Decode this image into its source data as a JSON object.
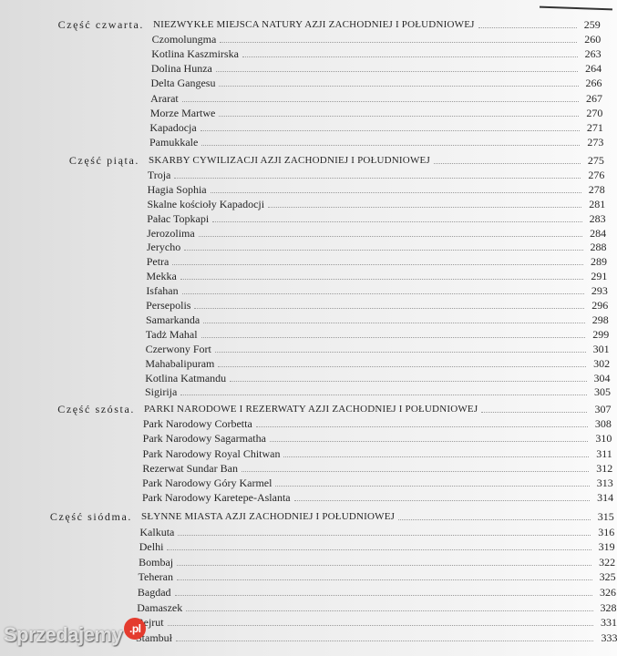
{
  "parts": [
    {
      "label": "Część czwarta.",
      "title": "NIEZWYKŁE MIEJSCA NATURY AZJI ZACHODNIEJ I POŁUDNIOWEJ",
      "page": "259",
      "entries": [
        [
          "Czomolungma",
          "260"
        ],
        [
          "Kotlina Kaszmirska",
          "263"
        ],
        [
          "Dolina Hunza",
          "264"
        ],
        [
          "Delta Gangesu",
          "266"
        ],
        [
          "Ararat",
          "267"
        ],
        [
          "Morze Martwe",
          "270"
        ],
        [
          "Kapadocja",
          "271"
        ],
        [
          "Pamukkale",
          "273"
        ]
      ]
    },
    {
      "label": "Część piąta.",
      "title": "SKARBY CYWILIZACJI AZJI ZACHODNIEJ I POŁUDNIOWEJ",
      "page": "275",
      "entries": [
        [
          "Troja",
          "276"
        ],
        [
          "Hagia Sophia",
          "278"
        ],
        [
          "Skalne kościoły Kapadocji",
          "281"
        ],
        [
          "Pałac Topkapi",
          "283"
        ],
        [
          "Jerozolima",
          "284"
        ],
        [
          "Jerycho",
          "288"
        ],
        [
          "Petra",
          "289"
        ],
        [
          "Mekka",
          "291"
        ],
        [
          "Isfahan",
          "293"
        ],
        [
          "Persepolis",
          "296"
        ],
        [
          "Samarkanda",
          "298"
        ],
        [
          "Tadż Mahal",
          "299"
        ],
        [
          "Czerwony Fort",
          "301"
        ],
        [
          "Mahabalipuram",
          "302"
        ],
        [
          "Kotlina Katmandu",
          "304"
        ],
        [
          "Sigirija",
          "305"
        ]
      ]
    },
    {
      "label": "Część szósta.",
      "title": "PARKI NARODOWE I REZERWATY AZJI ZACHODNIEJ I POŁUDNIOWEJ",
      "page": "307",
      "entries": [
        [
          "Park Narodowy Corbetta",
          "308"
        ],
        [
          "Park Narodowy Sagarmatha",
          "310"
        ],
        [
          "Park Narodowy Royal Chitwan",
          "311"
        ],
        [
          "Rezerwat Sundar Ban",
          "312"
        ],
        [
          "Park Narodowy Góry Karmel",
          "313"
        ],
        [
          "Park Narodowy Karetepe-Aslanta",
          "314"
        ]
      ]
    },
    {
      "label": "Część siódma.",
      "title": "SŁYNNE MIASTA AZJI ZACHODNIEJ I POŁUDNIOWEJ",
      "page": "315",
      "entries": [
        [
          "Kalkuta",
          "316"
        ],
        [
          "Delhi",
          "319"
        ],
        [
          "Bombaj",
          "322"
        ],
        [
          "Teheran",
          "325"
        ],
        [
          "Bagdad",
          "326"
        ],
        [
          "Damaszek",
          "328"
        ],
        [
          "Bejrut",
          "331"
        ],
        [
          "Stambuł",
          "333"
        ]
      ]
    }
  ],
  "watermark": {
    "text": "Sprzedajemy",
    "badge": ".pl"
  }
}
